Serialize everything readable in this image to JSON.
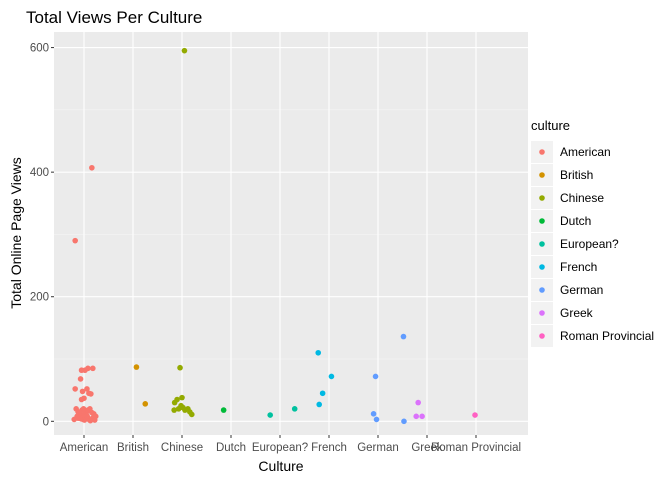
{
  "chart_data": {
    "type": "scatter",
    "title": "Total Views Per Culture",
    "xlabel": "Culture",
    "ylabel": "Total Online Page Views",
    "categories": [
      "American",
      "British",
      "Chinese",
      "Dutch",
      "European?",
      "French",
      "German",
      "Greek",
      "Roman Provincial"
    ],
    "ylim": [
      -22,
      625
    ],
    "yticks": [
      0,
      200,
      400,
      600
    ],
    "grid": true,
    "legend": {
      "title": "culture",
      "position": "right"
    },
    "colors": {
      "American": "#F8766D",
      "British": "#D39200",
      "Chinese": "#93AA00",
      "Dutch": "#00BA38",
      "European?": "#00C19F",
      "French": "#00B9E3",
      "German": "#619CFF",
      "Greek": "#DB72FB",
      "Roman Provincial": "#FF61C3"
    },
    "series": [
      {
        "name": "American",
        "points": [
          {
            "x": 0.82,
            "y": 290
          },
          {
            "x": 1.16,
            "y": 407
          },
          {
            "x": 0.82,
            "y": 52
          },
          {
            "x": 0.88,
            "y": 5
          },
          {
            "x": 0.93,
            "y": 68
          },
          {
            "x": 0.95,
            "y": 82
          },
          {
            "x": 0.97,
            "y": 48
          },
          {
            "x": 1.02,
            "y": 82
          },
          {
            "x": 1.08,
            "y": 85
          },
          {
            "x": 1.18,
            "y": 85
          },
          {
            "x": 1.06,
            "y": 52
          },
          {
            "x": 1.1,
            "y": 45
          },
          {
            "x": 1.14,
            "y": 44
          },
          {
            "x": 0.95,
            "y": 35
          },
          {
            "x": 1.0,
            "y": 37
          },
          {
            "x": 0.84,
            "y": 20
          },
          {
            "x": 0.88,
            "y": 15
          },
          {
            "x": 0.92,
            "y": 12
          },
          {
            "x": 0.96,
            "y": 18
          },
          {
            "x": 0.99,
            "y": 20
          },
          {
            "x": 1.02,
            "y": 17
          },
          {
            "x": 1.05,
            "y": 15
          },
          {
            "x": 1.08,
            "y": 18
          },
          {
            "x": 1.12,
            "y": 20
          },
          {
            "x": 1.16,
            "y": 14
          },
          {
            "x": 1.2,
            "y": 12
          },
          {
            "x": 0.86,
            "y": 8
          },
          {
            "x": 0.9,
            "y": 6
          },
          {
            "x": 0.94,
            "y": 4
          },
          {
            "x": 0.98,
            "y": 3
          },
          {
            "x": 1.01,
            "y": 2
          },
          {
            "x": 1.04,
            "y": 5
          },
          {
            "x": 1.07,
            "y": 7
          },
          {
            "x": 1.1,
            "y": 3
          },
          {
            "x": 1.13,
            "y": 1
          },
          {
            "x": 1.16,
            "y": 4
          },
          {
            "x": 1.19,
            "y": 6
          },
          {
            "x": 1.22,
            "y": 2
          },
          {
            "x": 1.24,
            "y": 8
          },
          {
            "x": 0.8,
            "y": 3
          },
          {
            "x": 1.0,
            "y": 10
          },
          {
            "x": 1.06,
            "y": 9
          }
        ]
      },
      {
        "name": "British",
        "points": [
          {
            "x": 2.07,
            "y": 87
          },
          {
            "x": 2.25,
            "y": 28
          }
        ]
      },
      {
        "name": "Chinese",
        "points": [
          {
            "x": 3.05,
            "y": 595
          },
          {
            "x": 2.96,
            "y": 86
          },
          {
            "x": 2.85,
            "y": 30
          },
          {
            "x": 2.9,
            "y": 35
          },
          {
            "x": 3.0,
            "y": 38
          },
          {
            "x": 2.84,
            "y": 18
          },
          {
            "x": 2.93,
            "y": 20
          },
          {
            "x": 2.98,
            "y": 25
          },
          {
            "x": 3.02,
            "y": 22
          },
          {
            "x": 3.06,
            "y": 18
          },
          {
            "x": 3.12,
            "y": 20
          },
          {
            "x": 3.16,
            "y": 15
          },
          {
            "x": 3.2,
            "y": 11
          }
        ]
      },
      {
        "name": "Dutch",
        "points": [
          {
            "x": 3.85,
            "y": 18
          }
        ]
      },
      {
        "name": "European?",
        "points": [
          {
            "x": 4.8,
            "y": 10
          },
          {
            "x": 5.3,
            "y": 20
          }
        ]
      },
      {
        "name": "French",
        "points": [
          {
            "x": 5.78,
            "y": 110
          },
          {
            "x": 6.05,
            "y": 72
          },
          {
            "x": 5.87,
            "y": 45
          },
          {
            "x": 5.8,
            "y": 27
          }
        ]
      },
      {
        "name": "German",
        "points": [
          {
            "x": 7.52,
            "y": 136
          },
          {
            "x": 6.95,
            "y": 72
          },
          {
            "x": 6.91,
            "y": 12
          },
          {
            "x": 6.97,
            "y": 3
          },
          {
            "x": 7.53,
            "y": 0
          }
        ]
      },
      {
        "name": "Greek",
        "points": [
          {
            "x": 7.82,
            "y": 30
          },
          {
            "x": 7.78,
            "y": 8
          },
          {
            "x": 7.9,
            "y": 8
          }
        ]
      },
      {
        "name": "Roman Provincial",
        "points": [
          {
            "x": 8.98,
            "y": 10
          }
        ]
      }
    ]
  }
}
